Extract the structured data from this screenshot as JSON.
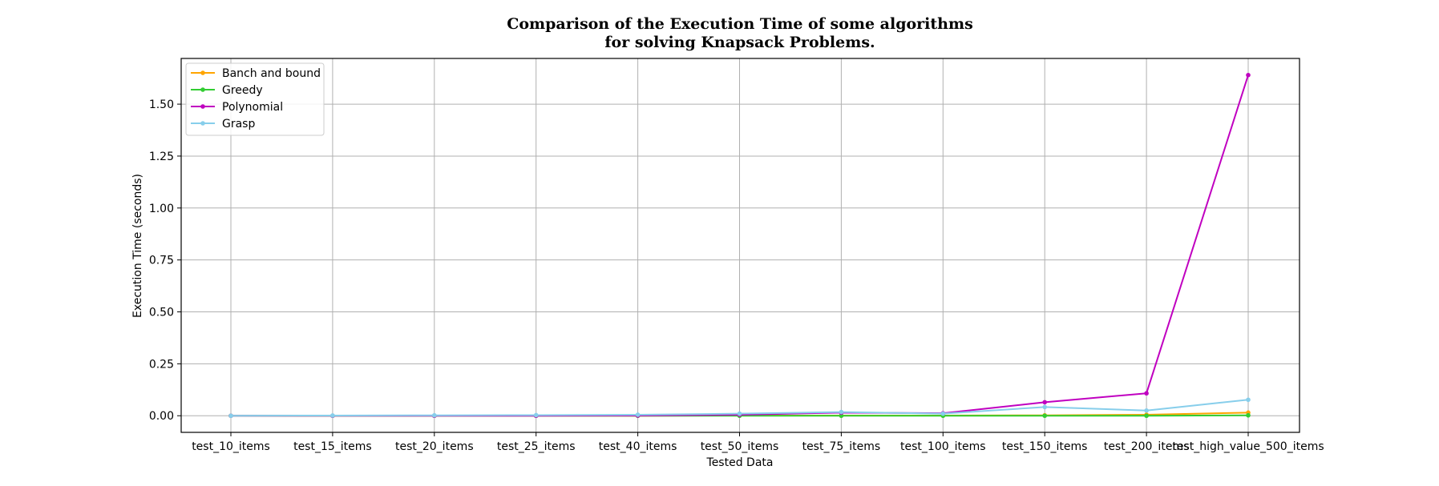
{
  "chart_data": {
    "type": "line",
    "title": [
      "Comparison of the Execution Time of some algorithms",
      "for solving Knapsack Problems."
    ],
    "xlabel": "Tested Data",
    "ylabel": "Execution Time (seconds)",
    "categories": [
      "test_10_items",
      "test_15_items",
      "test_20_items",
      "test_25_items",
      "test_40_items",
      "test_50_items",
      "test_75_items",
      "test_100_items",
      "test_150_items",
      "test_200_items",
      "test_high_value_500_items"
    ],
    "ylim": [
      -0.08,
      1.72
    ],
    "yticks": [
      0.0,
      0.25,
      0.5,
      0.75,
      1.0,
      1.25,
      1.5
    ],
    "ytick_labels": [
      "0.00",
      "0.25",
      "0.50",
      "0.75",
      "1.00",
      "1.25",
      "1.50"
    ],
    "grid": true,
    "legend_position": "top-left",
    "series": [
      {
        "name": "Banch and bound",
        "color": "#ffa500",
        "values": [
          0.0,
          0.0,
          0.0,
          0.0,
          0.0,
          0.001,
          0.001,
          0.001,
          0.002,
          0.005,
          0.015
        ]
      },
      {
        "name": "Greedy",
        "color": "#32cd32",
        "values": [
          0.0,
          0.0,
          0.0,
          0.0,
          0.0,
          0.0,
          0.0,
          0.0,
          0.0,
          0.0,
          0.002
        ]
      },
      {
        "name": "Polynomial",
        "color": "#c000c0",
        "values": [
          0.0,
          0.0,
          0.0,
          0.0,
          0.001,
          0.005,
          0.015,
          0.012,
          0.065,
          0.108,
          1.64
        ]
      },
      {
        "name": "Grasp",
        "color": "#87ceeb",
        "values": [
          0.0,
          0.001,
          0.002,
          0.003,
          0.005,
          0.01,
          0.018,
          0.01,
          0.042,
          0.025,
          0.077
        ]
      }
    ]
  }
}
